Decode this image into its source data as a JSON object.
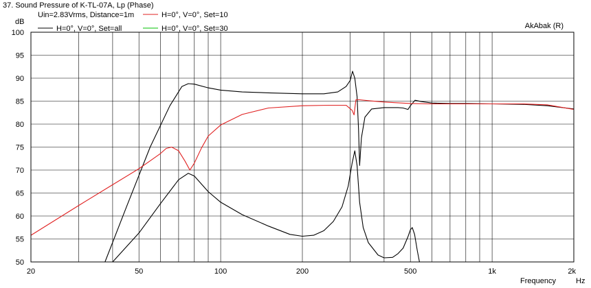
{
  "chart_data": {
    "type": "line",
    "title": "37. Sound Pressure of K-TL-07A, Lp (Phase)",
    "ylabel": "dB",
    "xlabel": "Frequency",
    "x_unit": "Hz",
    "watermark": "AkAbak (R)",
    "x_scale": "log",
    "xlim": [
      20,
      2000
    ],
    "ylim": [
      50,
      100
    ],
    "grid": true,
    "y_ticks": [
      50,
      55,
      60,
      65,
      70,
      75,
      80,
      85,
      90,
      95,
      100
    ],
    "x_tick_labels": [
      {
        "value": 20,
        "label": "20"
      },
      {
        "value": 50,
        "label": "50"
      },
      {
        "value": 100,
        "label": "100"
      },
      {
        "value": 200,
        "label": "200"
      },
      {
        "value": 500,
        "label": "500"
      },
      {
        "value": 1000,
        "label": "1k"
      },
      {
        "value": 2000,
        "label": "2k"
      }
    ],
    "x_gridlines": [
      20,
      30,
      40,
      50,
      60,
      70,
      80,
      90,
      100,
      200,
      300,
      400,
      500,
      600,
      700,
      800,
      900,
      1000,
      2000
    ],
    "legend": {
      "rows": [
        [
          "Uin=2.83Vrms, Distance=1m",
          "H=0°, V=0°, Set=10"
        ],
        [
          "H=0°, V=0°, Set=all",
          "H=0°, V=0°, Set=30"
        ]
      ]
    },
    "series": [
      {
        "name": "H=0°, V=0°, Set=all",
        "color": "#000000",
        "x": [
          37.5,
          45,
          55,
          65,
          72,
          76,
          80,
          90,
          100,
          120,
          150,
          200,
          240,
          270,
          290,
          300,
          306,
          312,
          318,
          322,
          325,
          330,
          340,
          360,
          400,
          450,
          470,
          490,
          500,
          520,
          550,
          600,
          700,
          800,
          1000,
          1300,
          1600,
          2000
        ],
        "y": [
          50,
          62,
          75,
          84,
          88.2,
          88.8,
          88.7,
          87.9,
          87.4,
          87.0,
          86.8,
          86.6,
          86.6,
          87.0,
          88.2,
          89.5,
          91.5,
          90,
          86,
          79,
          71,
          77,
          81.5,
          83.3,
          83.6,
          83.6,
          83.5,
          83.2,
          84.0,
          85.2,
          84.9,
          84.6,
          84.5,
          84.5,
          84.4,
          84.3,
          84.0,
          83.3
        ]
      },
      {
        "name": "H=0°, V=0°, Set=10",
        "color": "#e02020",
        "x": [
          20,
          30,
          40,
          50,
          55,
          60,
          63,
          66,
          70,
          74,
          77,
          80,
          85,
          90,
          100,
          120,
          150,
          200,
          250,
          290,
          305,
          310,
          315,
          325,
          350,
          400,
          500,
          600,
          800,
          1000,
          1300,
          1600,
          2000
        ],
        "y": [
          55.8,
          62.3,
          66.8,
          70.3,
          72.0,
          73.6,
          74.7,
          75.0,
          74.2,
          71.9,
          70.0,
          71.5,
          74.8,
          77.4,
          79.8,
          82.1,
          83.5,
          84.0,
          84.1,
          84.1,
          83.0,
          82.0,
          85.3,
          85.3,
          85.1,
          84.8,
          84.5,
          84.4,
          84.4,
          84.4,
          84.4,
          84.2,
          83.2
        ]
      },
      {
        "name": "H=0°, V=0°, Set=30",
        "color": "#00c000",
        "x": [],
        "y": []
      },
      {
        "name": "",
        "color": "#000000",
        "x": [
          40,
          50,
          60,
          70,
          76,
          80,
          90,
          100,
          120,
          150,
          180,
          200,
          220,
          240,
          260,
          280,
          295,
          305,
          312,
          318,
          325,
          335,
          350,
          380,
          400,
          430,
          450,
          470,
          490,
          500,
          508,
          518,
          530,
          540
        ],
        "y": [
          50,
          56.3,
          62.7,
          67.9,
          69.3,
          68.7,
          65.3,
          63.0,
          60.3,
          57.8,
          56.0,
          55.6,
          55.8,
          56.8,
          58.8,
          62.0,
          66.5,
          71.5,
          74.2,
          71,
          63,
          57.5,
          54.2,
          51.5,
          50.9,
          51.0,
          51.8,
          53.0,
          55.5,
          57.0,
          57.5,
          56.0,
          52.5,
          50
        ]
      }
    ]
  }
}
